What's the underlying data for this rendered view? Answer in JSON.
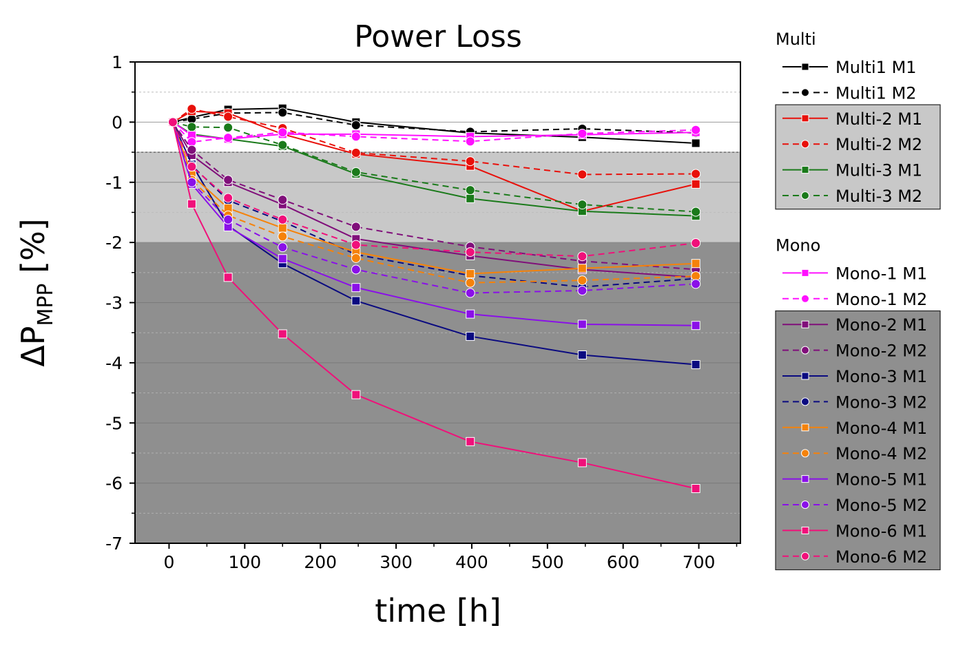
{
  "chart_data": {
    "type": "line",
    "title": "Power Loss",
    "xlabel": "time [h]",
    "ylabel": {
      "symbol": "ΔP",
      "subscript": "MPP",
      "unit": " [%]"
    },
    "xlim": [
      -45,
      755
    ],
    "ylim": [
      -7,
      1
    ],
    "xticks": [
      0,
      100,
      200,
      300,
      400,
      500,
      600,
      700
    ],
    "yticks": [
      1,
      0,
      -1,
      -2,
      -3,
      -4,
      -5,
      -6,
      -7
    ],
    "bands": [
      {
        "from": 1,
        "to": -0.5,
        "color": "#ffffff"
      },
      {
        "from": -0.5,
        "to": -2,
        "color": "#c8c8c8"
      },
      {
        "from": -2,
        "to": -7,
        "color": "#8f8f8f"
      }
    ],
    "x": [
      5,
      30,
      78,
      150,
      247,
      398,
      546,
      696
    ],
    "legend_groups": [
      {
        "label": "Multi",
        "series_range": [
          0,
          6
        ]
      },
      {
        "label": "Mono",
        "series_range": [
          6,
          18
        ]
      }
    ],
    "series": [
      {
        "name": "Multi1 M1",
        "color": "#000000",
        "dash": false,
        "marker": "square",
        "values": [
          0,
          0.08,
          0.21,
          0.23,
          0.0,
          -0.18,
          -0.25,
          -0.35
        ]
      },
      {
        "name": "Multi1 M2",
        "color": "#000000",
        "dash": true,
        "marker": "circle",
        "values": [
          0,
          0.05,
          0.15,
          0.16,
          -0.05,
          -0.16,
          -0.11,
          -0.18
        ]
      },
      {
        "name": "Multi-2 M1",
        "color": "#e8100a",
        "dash": false,
        "marker": "square",
        "values": [
          0,
          0.18,
          0.15,
          -0.2,
          -0.53,
          -0.73,
          -1.48,
          -1.03
        ]
      },
      {
        "name": "Multi-2 M2",
        "color": "#e8100a",
        "dash": true,
        "marker": "circle",
        "values": [
          0,
          0.22,
          0.09,
          -0.1,
          -0.51,
          -0.65,
          -0.87,
          -0.86
        ]
      },
      {
        "name": "Multi-3 M1",
        "color": "#1a7a1a",
        "dash": false,
        "marker": "square",
        "values": [
          0,
          -0.2,
          -0.28,
          -0.4,
          -0.86,
          -1.27,
          -1.48,
          -1.56
        ]
      },
      {
        "name": "Multi-3 M2",
        "color": "#1a7a1a",
        "dash": true,
        "marker": "circle",
        "values": [
          0,
          -0.08,
          -0.09,
          -0.38,
          -0.83,
          -1.13,
          -1.37,
          -1.49
        ]
      },
      {
        "name": "Mono-1 M1",
        "color": "#ff10ff",
        "dash": false,
        "marker": "square",
        "values": [
          0,
          -0.22,
          -0.28,
          -0.2,
          -0.2,
          -0.24,
          -0.21,
          -0.17
        ]
      },
      {
        "name": "Mono-1 M2",
        "color": "#ff10ff",
        "dash": true,
        "marker": "circle",
        "values": [
          0,
          -0.33,
          -0.26,
          -0.17,
          -0.24,
          -0.32,
          -0.19,
          -0.13
        ]
      },
      {
        "name": "Mono-2 M1",
        "color": "#800f7a",
        "dash": false,
        "marker": "square",
        "values": [
          0,
          -0.55,
          -1.0,
          -1.37,
          -1.94,
          -2.22,
          -2.45,
          -2.58
        ]
      },
      {
        "name": "Mono-2 M2",
        "color": "#800f7a",
        "dash": true,
        "marker": "circle",
        "values": [
          0,
          -0.46,
          -0.96,
          -1.29,
          -1.74,
          -2.07,
          -2.31,
          -2.45
        ]
      },
      {
        "name": "Mono-3 M1",
        "color": "#0a0a80",
        "dash": false,
        "marker": "square",
        "values": [
          0,
          -0.7,
          -1.72,
          -2.35,
          -2.97,
          -3.56,
          -3.87,
          -4.03
        ]
      },
      {
        "name": "Mono-3 M2",
        "color": "#0a0a80",
        "dash": true,
        "marker": "circle",
        "values": [
          0,
          -0.72,
          -1.3,
          -1.65,
          -2.2,
          -2.55,
          -2.74,
          -2.6
        ]
      },
      {
        "name": "Mono-4 M1",
        "color": "#f5820a",
        "dash": false,
        "marker": "square",
        "values": [
          0,
          -0.88,
          -1.43,
          -1.76,
          -2.16,
          -2.52,
          -2.43,
          -2.35
        ]
      },
      {
        "name": "Mono-4 M2",
        "color": "#f5820a",
        "dash": true,
        "marker": "circle",
        "values": [
          0,
          -0.96,
          -1.55,
          -1.9,
          -2.26,
          -2.67,
          -2.63,
          -2.56
        ]
      },
      {
        "name": "Mono-5 M1",
        "color": "#8a10e8",
        "dash": false,
        "marker": "square",
        "values": [
          0,
          -1.03,
          -1.74,
          -2.27,
          -2.75,
          -3.19,
          -3.36,
          -3.38
        ]
      },
      {
        "name": "Mono-5 M2",
        "color": "#8a10e8",
        "dash": true,
        "marker": "circle",
        "values": [
          0,
          -1.0,
          -1.62,
          -2.08,
          -2.45,
          -2.84,
          -2.8,
          -2.69
        ]
      },
      {
        "name": "Mono-6 M1",
        "color": "#f0107a",
        "dash": false,
        "marker": "square",
        "values": [
          0,
          -1.36,
          -2.58,
          -3.52,
          -4.53,
          -5.31,
          -5.66,
          -6.09
        ]
      },
      {
        "name": "Mono-6 M2",
        "color": "#f0107a",
        "dash": true,
        "marker": "circle",
        "values": [
          0,
          -0.74,
          -1.26,
          -1.62,
          -2.04,
          -2.16,
          -2.23,
          -2.01
        ]
      }
    ]
  }
}
